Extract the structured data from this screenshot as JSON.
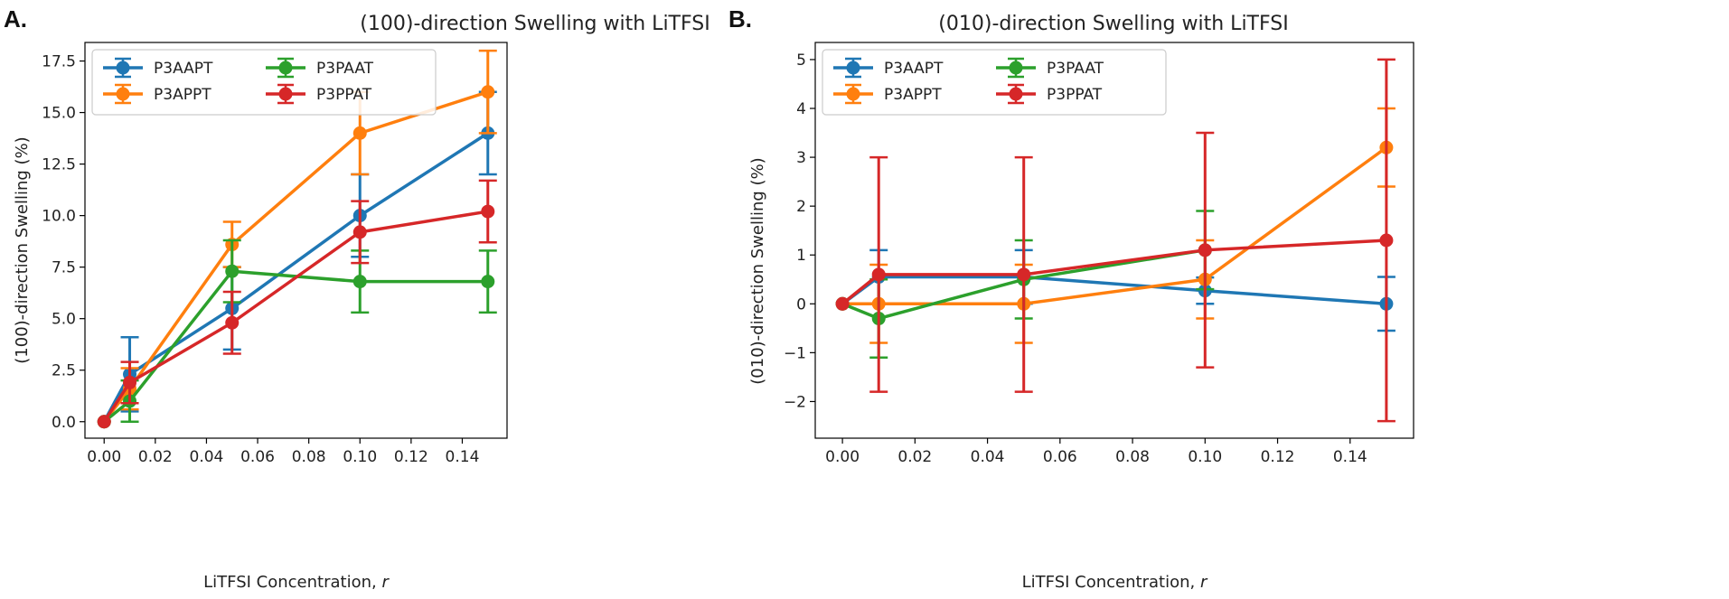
{
  "figure": {
    "panels": [
      {
        "letter": "A."
      },
      {
        "letter": "B."
      }
    ]
  },
  "chart_data": [
    {
      "type": "line",
      "title": "(100)-direction Swelling with LiTFSI",
      "xlabel": "LiTFSI Concentration, r",
      "ylabel": "(100)-direction Swelling (%)",
      "xlim": [
        -0.0075,
        0.1575
      ],
      "ylim": [
        -0.8,
        18.4
      ],
      "xticks": [
        0.0,
        0.02,
        0.04,
        0.06,
        0.08,
        0.1,
        0.12,
        0.14
      ],
      "xtick_labels": [
        "0.00",
        "0.02",
        "0.04",
        "0.06",
        "0.08",
        "0.10",
        "0.12",
        "0.14"
      ],
      "yticks": [
        0.0,
        2.5,
        5.0,
        7.5,
        10.0,
        12.5,
        15.0,
        17.5
      ],
      "ytick_labels": [
        "0.0",
        "2.5",
        "5.0",
        "7.5",
        "10.0",
        "12.5",
        "15.0",
        "17.5"
      ],
      "legend_position": "top-left",
      "grid": false,
      "x": [
        0.0,
        0.01,
        0.05,
        0.1,
        0.15
      ],
      "series": [
        {
          "name": "P3AAPT",
          "color": "#1f77b4",
          "values": [
            0.0,
            2.3,
            5.5,
            10.0,
            14.0
          ],
          "errors": [
            0.0,
            1.8,
            2.0,
            2.0,
            2.0
          ]
        },
        {
          "name": "P3APPT",
          "color": "#ff7f0e",
          "values": [
            0.0,
            1.6,
            8.6,
            14.0,
            16.0
          ],
          "errors": [
            0.0,
            1.0,
            1.1,
            2.0,
            2.0
          ]
        },
        {
          "name": "P3PAAT",
          "color": "#2ca02c",
          "values": [
            0.0,
            1.0,
            7.3,
            6.8,
            6.8
          ],
          "errors": [
            0.0,
            1.0,
            1.5,
            1.5,
            1.5
          ]
        },
        {
          "name": "P3PPAT",
          "color": "#d62728",
          "values": [
            0.0,
            1.9,
            4.8,
            9.2,
            10.2
          ],
          "errors": [
            0.0,
            1.0,
            1.5,
            1.5,
            1.5
          ]
        }
      ]
    },
    {
      "type": "line",
      "title": "(010)-direction Swelling with LiTFSI",
      "xlabel": "LiTFSI Concentration, r",
      "ylabel": "(010)-direction Swelling (%)",
      "xlim": [
        -0.0075,
        0.1575
      ],
      "ylim": [
        -2.75,
        5.35
      ],
      "xticks": [
        0.0,
        0.02,
        0.04,
        0.06,
        0.08,
        0.1,
        0.12,
        0.14
      ],
      "xtick_labels": [
        "0.00",
        "0.02",
        "0.04",
        "0.06",
        "0.08",
        "0.10",
        "0.12",
        "0.14"
      ],
      "yticks": [
        -2,
        -1,
        0,
        1,
        2,
        3,
        4,
        5
      ],
      "ytick_labels": [
        "−2",
        "−1",
        "0",
        "1",
        "2",
        "3",
        "4",
        "5"
      ],
      "legend_position": "top-left",
      "grid": false,
      "x": [
        0.0,
        0.01,
        0.05,
        0.1,
        0.15
      ],
      "series": [
        {
          "name": "P3AAPT",
          "color": "#1f77b4",
          "values": [
            0.0,
            0.55,
            0.55,
            0.27,
            0.0
          ],
          "errors": [
            0.0,
            0.55,
            0.55,
            0.27,
            0.55
          ]
        },
        {
          "name": "P3APPT",
          "color": "#ff7f0e",
          "values": [
            0.0,
            0.0,
            0.0,
            0.5,
            3.2
          ],
          "errors": [
            0.0,
            0.8,
            0.8,
            0.8,
            0.8
          ]
        },
        {
          "name": "P3PAAT",
          "color": "#2ca02c",
          "values": [
            0.0,
            -0.3,
            0.5,
            1.1,
            null
          ],
          "errors": [
            0.0,
            0.8,
            0.8,
            0.8,
            null
          ]
        },
        {
          "name": "P3PPAT",
          "color": "#d62728",
          "values": [
            0.0,
            0.6,
            0.6,
            1.1,
            1.3
          ],
          "errors": [
            0.0,
            2.4,
            2.4,
            2.4,
            3.7
          ]
        }
      ]
    }
  ]
}
